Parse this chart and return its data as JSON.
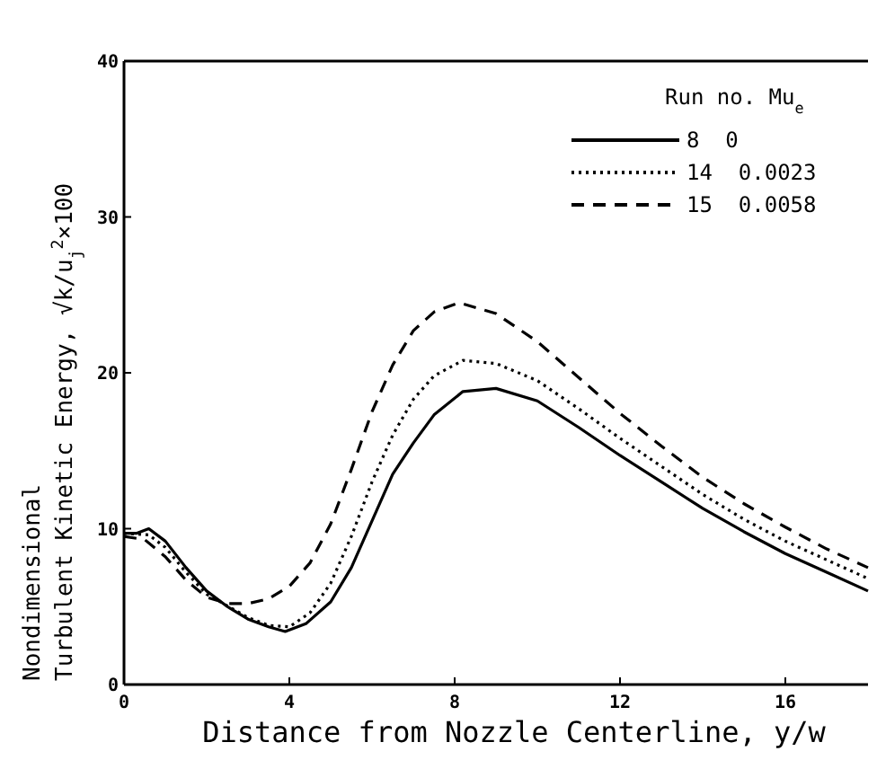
{
  "chart_data": {
    "type": "line",
    "xlabel": "Distance from Nozzle Centerline, y/w",
    "ylabel": "Nondimensional\nTurbulent Kinetic Energy, √k/u$_{j}$$^{2}$×100",
    "legend_title": "Run no.  Mu$_{e}$",
    "legend": "top right",
    "grid": false,
    "xlim": [
      0,
      18
    ],
    "ylim": [
      0,
      40
    ],
    "xticks": [
      0,
      4,
      8,
      12,
      16
    ],
    "yticks": [
      0,
      10,
      20,
      30,
      40
    ],
    "x": [
      0,
      0.3,
      0.6,
      1,
      1.5,
      2,
      2.5,
      3,
      3.5,
      3.9,
      4.4,
      5,
      5.5,
      6,
      6.5,
      7,
      7.5,
      8.2,
      9,
      10,
      11,
      12,
      13,
      14,
      15,
      16,
      17,
      18
    ],
    "series": [
      {
        "name": "8  0",
        "color": "#000000",
        "line_style": "solid",
        "values": [
          9.7,
          9.7,
          10.0,
          9.2,
          7.5,
          6.0,
          5.0,
          4.2,
          3.7,
          3.4,
          3.9,
          5.3,
          7.5,
          10.5,
          13.5,
          15.5,
          17.3,
          18.8,
          19.0,
          18.2,
          16.5,
          14.7,
          13.0,
          11.3,
          9.8,
          8.4,
          7.2,
          6.0
        ]
      },
      {
        "name": "14  0.0023",
        "color": "#000000",
        "line_style": "dotted",
        "x": [
          0,
          0.6,
          1,
          1.5,
          2,
          3,
          3.5,
          4,
          4.5,
          5,
          5.5,
          6,
          6.5,
          7,
          7.5,
          8.2,
          9,
          10,
          11,
          12,
          13,
          14,
          15,
          16,
          17,
          18
        ],
        "values": [
          9.7,
          9.6,
          8.8,
          7.2,
          5.8,
          4.3,
          3.8,
          3.7,
          4.6,
          6.5,
          9.5,
          13,
          16,
          18.3,
          19.8,
          20.8,
          20.6,
          19.5,
          17.7,
          15.8,
          14.0,
          12.2,
          10.6,
          9.2,
          8.0,
          6.8
        ]
      },
      {
        "name": "15  0.0058",
        "color": "#000000",
        "line_style": "dashed",
        "x": [
          0,
          0.5,
          1,
          1.5,
          2,
          2.5,
          3,
          3.5,
          4,
          4.5,
          5,
          5.5,
          6,
          6.5,
          7,
          7.5,
          8.1,
          9,
          10,
          11,
          12,
          13,
          14,
          15,
          16,
          17,
          18
        ],
        "values": [
          9.5,
          9.3,
          8.2,
          6.7,
          5.6,
          5.2,
          5.2,
          5.5,
          6.3,
          7.8,
          10.3,
          13.8,
          17.5,
          20.5,
          22.7,
          23.9,
          24.5,
          23.8,
          22.0,
          19.7,
          17.4,
          15.3,
          13.3,
          11.6,
          10.1,
          8.7,
          7.5
        ]
      }
    ]
  }
}
